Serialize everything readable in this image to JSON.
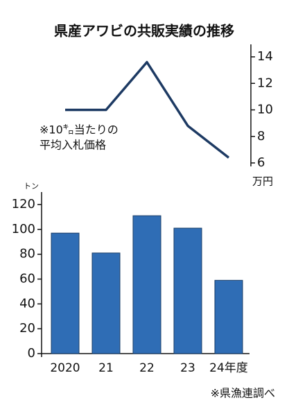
{
  "title": "県産アワビの共販実績の推移",
  "source": "※県漁連調べ",
  "chart_data": [
    {
      "type": "line",
      "values": [
        10,
        10,
        13.6,
        8.8,
        6.4
      ],
      "color": "#1d3a63",
      "ylim": [
        6,
        14
      ],
      "yticks": [
        6,
        8,
        10,
        12,
        14
      ],
      "axis_side": "right",
      "unit": "万円",
      "annotation": [
        "※10㌔当たりの",
        "平均入札価格"
      ]
    },
    {
      "type": "bar",
      "categories": [
        "2020",
        "21",
        "22",
        "23",
        "24年度"
      ],
      "values": [
        97,
        81,
        111,
        101,
        59
      ],
      "color": "#2f6db5",
      "ylim": [
        0,
        120
      ],
      "yticks": [
        0,
        20,
        40,
        60,
        80,
        100,
        120
      ],
      "axis_side": "left",
      "unit": "トン"
    }
  ]
}
